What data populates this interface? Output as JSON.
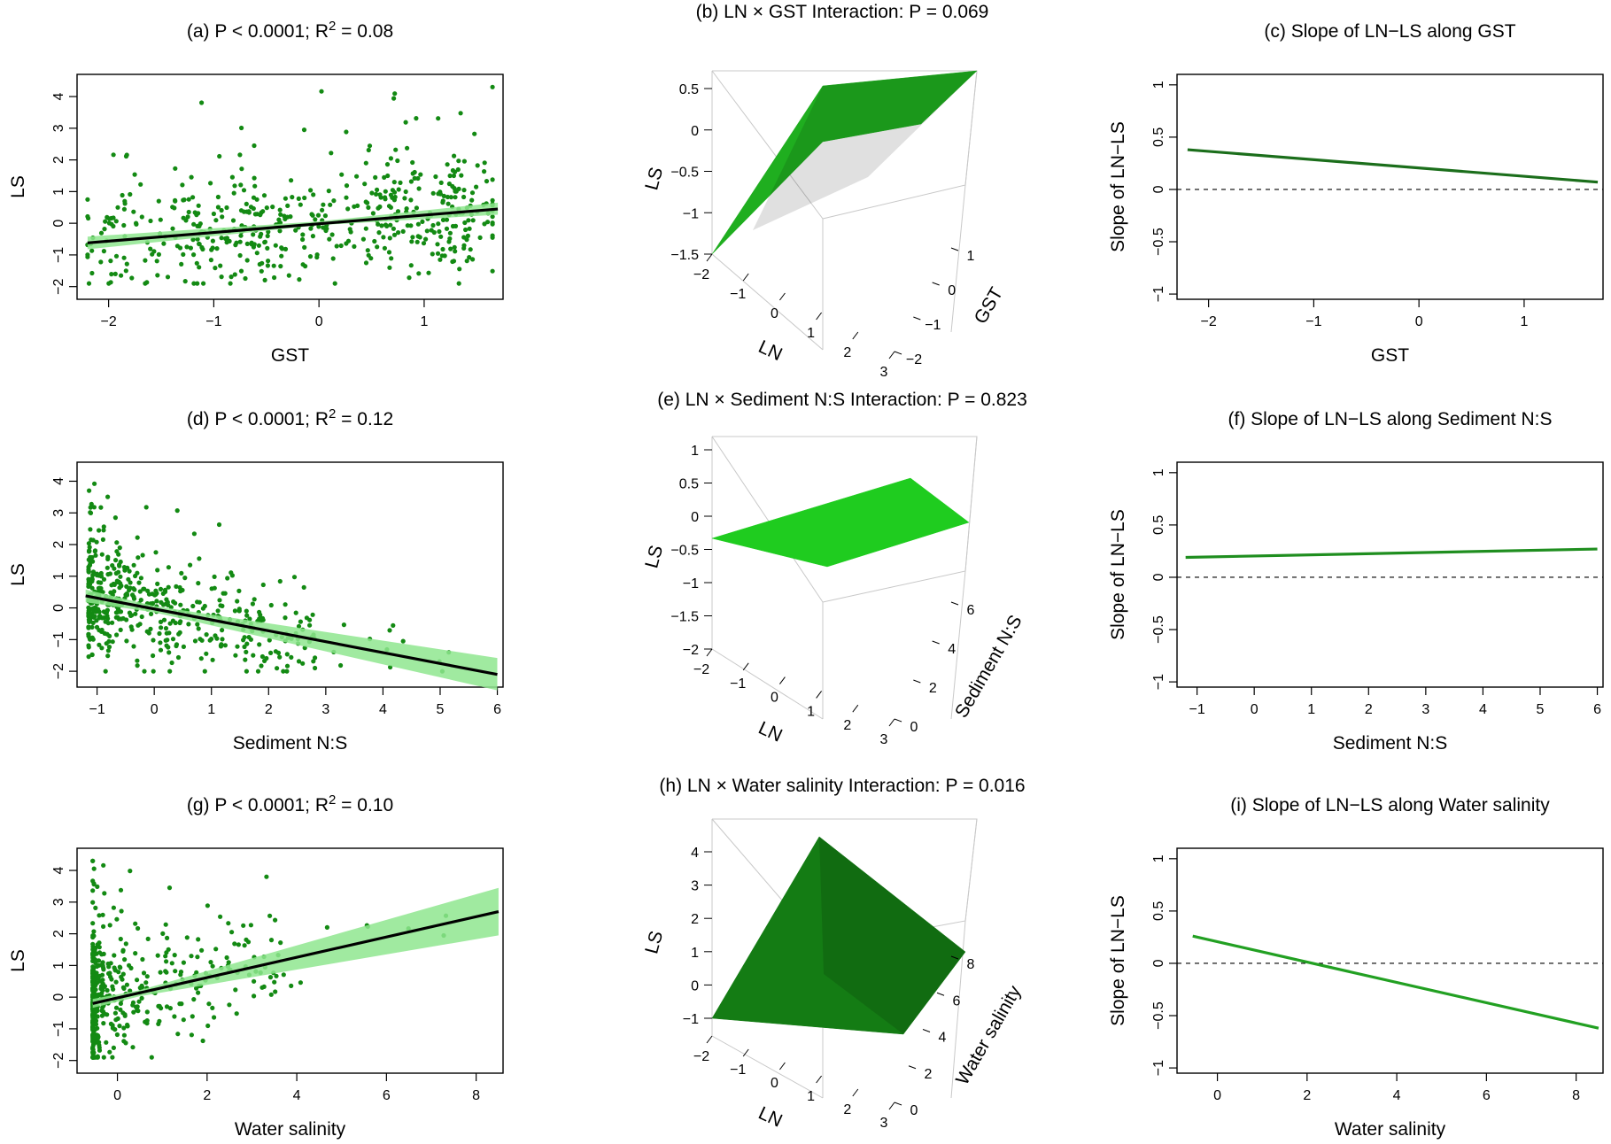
{
  "chart_data": [
    {
      "type": "scatter",
      "panel": "a",
      "title": "(a) P < 0.0001; R",
      "title_sup": "2",
      "title_tail": " = 0.08",
      "xlabel": "GST",
      "ylabel": "LS",
      "xlim": [
        -2.3,
        1.75
      ],
      "ylim": [
        -2.4,
        4.7
      ],
      "xticks": [
        -2,
        -1,
        0,
        1
      ],
      "yticks": [
        -2,
        -1,
        0,
        1,
        2,
        3,
        4
      ],
      "point_count": 520,
      "point_color": "#138a13",
      "fit_line": {
        "x": [
          -2.2,
          1.7
        ],
        "y": [
          -0.62,
          0.45
        ]
      },
      "ci_band": {
        "x": [
          -2.2,
          0.0,
          1.7
        ],
        "lower": [
          -0.82,
          -0.06,
          0.27
        ],
        "upper": [
          -0.42,
          0.06,
          0.65
        ]
      },
      "fit_color": "#000000",
      "band_color": "#8fe68f"
    },
    {
      "type": "surface3d",
      "panel": "b",
      "title": "(b) LN × GST Interaction: P = 0.069",
      "xlabel": "LN",
      "ylabel": "GST",
      "zlabel": "LS",
      "xticks": [
        -2,
        -1,
        0,
        1,
        2,
        3
      ],
      "yticks": [
        -2,
        -1,
        0,
        1
      ],
      "zticks": [
        -1.5,
        -1.0,
        -0.5,
        0.0,
        0.5
      ],
      "surface_color": "#1fae1f"
    },
    {
      "type": "line",
      "panel": "c",
      "title": "(c) Slope of LN−LS along GST",
      "xlabel": "GST",
      "ylabel": "Slope of LN−LS",
      "xlim": [
        -2.3,
        1.75
      ],
      "ylim": [
        -1.05,
        1.1
      ],
      "xticks": [
        -2,
        -1,
        0,
        1
      ],
      "yticks": [
        -1.0,
        -0.5,
        0.0,
        0.5,
        1.0
      ],
      "x": [
        -2.2,
        1.7
      ],
      "y": [
        0.38,
        0.07
      ],
      "line_color": "#1b6e1b",
      "reference_line": 0
    },
    {
      "type": "scatter",
      "panel": "d",
      "title": "(d) P < 0.0001; R",
      "title_sup": "2",
      "title_tail": " = 0.12",
      "xlabel": "Sediment N:S",
      "ylabel": "LS",
      "xlim": [
        -1.35,
        6.1
      ],
      "ylim": [
        -2.5,
        4.6
      ],
      "xticks": [
        -1,
        0,
        1,
        2,
        3,
        4,
        5,
        6
      ],
      "yticks": [
        -2,
        -1,
        0,
        1,
        2,
        3,
        4
      ],
      "point_count": 520,
      "point_color": "#138a13",
      "fit_line": {
        "x": [
          -1.2,
          6.0
        ],
        "y": [
          0.38,
          -2.1
        ]
      },
      "ci_band": {
        "x": [
          -1.2,
          0.0,
          6.0
        ],
        "lower": [
          0.18,
          -0.14,
          -2.6
        ],
        "upper": [
          0.58,
          0.06,
          -1.58
        ]
      },
      "fit_color": "#000000",
      "band_color": "#8fe68f"
    },
    {
      "type": "surface3d",
      "panel": "e",
      "title": "(e) LN × Sediment N:S Interaction: P = 0.823",
      "xlabel": "LN",
      "ylabel": "Sediment N:S",
      "zlabel": "LS",
      "xticks": [
        -2,
        -1,
        0,
        1,
        2,
        3
      ],
      "yticks": [
        0,
        2,
        4,
        6
      ],
      "zticks": [
        -2.0,
        -1.5,
        -1.0,
        -0.5,
        0.0,
        0.5,
        1.0
      ],
      "surface_color": "#1fcc1f"
    },
    {
      "type": "line",
      "panel": "f",
      "title": "(f) Slope of LN−LS along Sediment N:S",
      "xlabel": "Sediment N:S",
      "ylabel": "Slope of LN−LS",
      "xlim": [
        -1.35,
        6.1
      ],
      "ylim": [
        -1.05,
        1.1
      ],
      "xticks": [
        -1,
        0,
        1,
        2,
        3,
        4,
        5,
        6
      ],
      "yticks": [
        -1.0,
        -0.5,
        0.0,
        0.5,
        1.0
      ],
      "x": [
        -1.2,
        6.0
      ],
      "y": [
        0.19,
        0.27
      ],
      "line_color": "#1f8e1f",
      "reference_line": 0
    },
    {
      "type": "scatter",
      "panel": "g",
      "title": "(g) P < 0.0001; R",
      "title_sup": "2",
      "title_tail": " = 0.10",
      "xlabel": "Water salinity",
      "ylabel": "LS",
      "xlim": [
        -0.9,
        8.6
      ],
      "ylim": [
        -2.4,
        4.7
      ],
      "xticks": [
        0,
        2,
        4,
        6,
        8
      ],
      "yticks": [
        -2,
        -1,
        0,
        1,
        2,
        3,
        4
      ],
      "point_count": 520,
      "point_color": "#138a13",
      "fit_line": {
        "x": [
          -0.55,
          8.5
        ],
        "y": [
          -0.2,
          2.7
        ]
      },
      "ci_band": {
        "x": [
          -0.55,
          0.5,
          8.5
        ],
        "lower": [
          -0.34,
          0.03,
          1.95
        ],
        "upper": [
          -0.06,
          0.22,
          3.45
        ]
      },
      "fit_color": "#000000",
      "band_color": "#8fe68f"
    },
    {
      "type": "surface3d",
      "panel": "h",
      "title": "(h) LN × Water salinity Interaction: P = 0.016",
      "xlabel": "LN",
      "ylabel": "Water salinity",
      "zlabel": "LS",
      "xticks": [
        -2,
        -1,
        0,
        1,
        2,
        3
      ],
      "yticks": [
        0,
        2,
        4,
        6,
        8
      ],
      "zticks": [
        -1,
        0,
        1,
        2,
        3,
        4
      ],
      "surface_color": "#147c14"
    },
    {
      "type": "line",
      "panel": "i",
      "title": "(i) Slope of LN−LS along Water salinity",
      "xlabel": "Water salinity",
      "ylabel": "Slope of LN−LS",
      "xlim": [
        -0.9,
        8.6
      ],
      "ylim": [
        -1.05,
        1.1
      ],
      "xticks": [
        0,
        2,
        4,
        6,
        8
      ],
      "yticks": [
        -1.0,
        -0.5,
        0.0,
        0.5,
        1.0
      ],
      "x": [
        -0.55,
        8.5
      ],
      "y": [
        0.26,
        -0.62
      ],
      "line_color": "#22a022",
      "reference_line": 0
    }
  ]
}
